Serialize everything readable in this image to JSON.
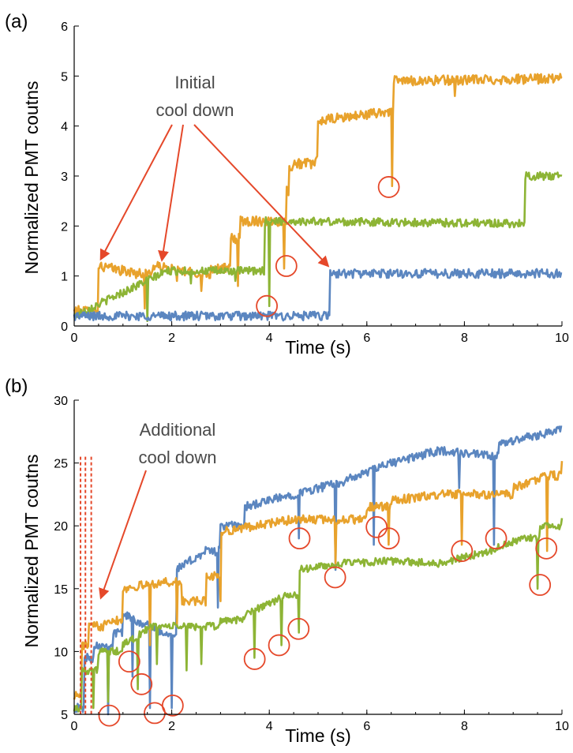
{
  "colors": {
    "orange": "#e8a22c",
    "green": "#8db435",
    "blue": "#5b86c0",
    "annotation": "#e5482a"
  },
  "chart_data": [
    {
      "type": "line",
      "panel_label": "(a)",
      "xlabel": "Time (s)",
      "ylabel": "Normalized PMT coutns",
      "xlim": [
        0,
        10
      ],
      "ylim": [
        0,
        6
      ],
      "xticks": [
        0,
        2,
        4,
        6,
        8,
        10
      ],
      "yticks": [
        0,
        1,
        2,
        3,
        4,
        5,
        6
      ],
      "grid": false,
      "series": [
        {
          "color_key": "orange",
          "steps": [
            [
              0,
              0.3
            ],
            [
              0.5,
              1.2
            ],
            [
              1.3,
              1.05
            ],
            [
              1.6,
              1.2
            ],
            [
              2.5,
              1.05
            ],
            [
              2.8,
              1.15
            ],
            [
              3.2,
              1.75
            ],
            [
              3.4,
              2.1
            ],
            [
              4.2,
              2.1
            ],
            [
              4.35,
              2.7
            ],
            [
              4.4,
              3.2
            ],
            [
              4.5,
              3.25
            ],
            [
              4.95,
              3.3
            ],
            [
              5.0,
              4.1
            ],
            [
              6.5,
              4.3
            ],
            [
              6.55,
              4.9
            ],
            [
              10,
              4.95
            ]
          ],
          "noise": 0.1,
          "dips": [
            [
              1.45,
              0.35
            ],
            [
              2.1,
              0.9
            ],
            [
              2.6,
              0.7
            ],
            [
              3.35,
              0.8
            ],
            [
              4.3,
              1.15
            ],
            [
              6.52,
              2.8
            ],
            [
              7.8,
              4.6
            ]
          ]
        },
        {
          "color_key": "green",
          "steps": [
            [
              0,
              0.2
            ],
            [
              1.9,
              1.1
            ],
            [
              3.85,
              1.1
            ],
            [
              3.9,
              2.1
            ],
            [
              9.2,
              2.05
            ],
            [
              9.25,
              3.0
            ],
            [
              10,
              3.0
            ]
          ],
          "noise": 0.08,
          "dips": [
            [
              1.5,
              0.1
            ],
            [
              2.4,
              0.85
            ],
            [
              3.3,
              0.9
            ],
            [
              4.0,
              0.4
            ]
          ]
        },
        {
          "color_key": "blue",
          "steps": [
            [
              0,
              0.2
            ],
            [
              5.2,
              0.2
            ],
            [
              5.25,
              1.05
            ],
            [
              10,
              1.05
            ]
          ],
          "noise": 0.09,
          "dips": []
        }
      ],
      "annotations": {
        "text_lines": [
          "Initial",
          "cool down"
        ],
        "circles": [
          [
            6.45,
            2.78
          ],
          [
            4.35,
            1.2
          ],
          [
            3.95,
            0.4
          ]
        ]
      }
    },
    {
      "type": "line",
      "panel_label": "(b)",
      "xlabel": "Time (s)",
      "ylabel": "Normalized PMT coutns",
      "xlim": [
        0,
        10
      ],
      "ylim": [
        5,
        30
      ],
      "xticks": [
        0,
        2,
        4,
        6,
        8,
        10
      ],
      "yticks": [
        5,
        10,
        15,
        20,
        25,
        30
      ],
      "grid": false,
      "series": [
        {
          "color_key": "blue",
          "steps": [
            [
              0,
              5.5
            ],
            [
              0.2,
              9.5
            ],
            [
              0.4,
              10.5
            ],
            [
              0.8,
              11.5
            ],
            [
              1.0,
              13.0
            ],
            [
              1.8,
              11.5
            ],
            [
              2.1,
              16.5
            ],
            [
              2.7,
              18.0
            ],
            [
              3.0,
              20.0
            ],
            [
              3.5,
              21.5
            ],
            [
              4.5,
              22.5
            ],
            [
              5.5,
              23.5
            ],
            [
              6.5,
              25.0
            ],
            [
              7.5,
              26.0
            ],
            [
              8.6,
              25.5
            ],
            [
              8.7,
              26.5
            ],
            [
              10,
              27.7
            ]
          ],
          "noise": 0.35,
          "dips": [
            [
              0.7,
              5.0
            ],
            [
              1.2,
              8.0
            ],
            [
              1.55,
              5.5
            ],
            [
              2.0,
              5.5
            ],
            [
              2.95,
              13.5
            ],
            [
              4.6,
              19.0
            ],
            [
              5.35,
              16.5
            ],
            [
              6.15,
              18.5
            ],
            [
              7.9,
              23.0
            ],
            [
              8.6,
              18.5
            ]
          ]
        },
        {
          "color_key": "orange",
          "steps": [
            [
              0,
              6.5
            ],
            [
              0.15,
              10.5
            ],
            [
              0.3,
              12.0
            ],
            [
              0.6,
              12.5
            ],
            [
              1.0,
              15.0
            ],
            [
              1.8,
              15.5
            ],
            [
              2.2,
              14.0
            ],
            [
              2.7,
              16.0
            ],
            [
              3.0,
              19.5
            ],
            [
              3.7,
              20.0
            ],
            [
              4.5,
              20.5
            ],
            [
              5.5,
              20.5
            ],
            [
              6.0,
              21.5
            ],
            [
              6.5,
              22.0
            ],
            [
              7.5,
              22.5
            ],
            [
              8.5,
              22.5
            ],
            [
              9.0,
              23.0
            ],
            [
              9.7,
              24.0
            ],
            [
              10,
              25.0
            ]
          ],
          "noise": 0.35,
          "dips": [
            [
              1.55,
              10.5
            ],
            [
              2.1,
              12.0
            ],
            [
              3.0,
              14.0
            ],
            [
              5.35,
              17.0
            ],
            [
              6.45,
              18.5
            ],
            [
              7.95,
              18.5
            ],
            [
              9.7,
              18.0
            ]
          ]
        },
        {
          "color_key": "green",
          "steps": [
            [
              0,
              5.5
            ],
            [
              0.15,
              8.5
            ],
            [
              0.5,
              10.0
            ],
            [
              1.0,
              10.5
            ],
            [
              1.6,
              12.0
            ],
            [
              2.5,
              12.0
            ],
            [
              3.0,
              12.5
            ],
            [
              3.5,
              13.0
            ],
            [
              4.4,
              14.5
            ],
            [
              4.6,
              16.5
            ],
            [
              5.5,
              17.0
            ],
            [
              6.5,
              17.2
            ],
            [
              7.5,
              17.0
            ],
            [
              8.5,
              18.0
            ],
            [
              9.2,
              19.0
            ],
            [
              9.55,
              20.0
            ],
            [
              10,
              20.5
            ]
          ],
          "noise": 0.3,
          "dips": [
            [
              0.4,
              5.5
            ],
            [
              0.7,
              6.0
            ],
            [
              1.3,
              7.0
            ],
            [
              1.7,
              9.0
            ],
            [
              2.3,
              8.5
            ],
            [
              2.6,
              9.0
            ],
            [
              3.7,
              9.5
            ],
            [
              4.25,
              10.5
            ],
            [
              4.6,
              11.5
            ],
            [
              9.5,
              15.0
            ]
          ]
        }
      ],
      "annotations": {
        "text_lines": [
          "Additional",
          "cool down"
        ],
        "dashed_x": [
          0.13,
          0.23,
          0.35
        ],
        "circles": [
          [
            0.72,
            4.9
          ],
          [
            1.13,
            9.2
          ],
          [
            1.38,
            7.4
          ],
          [
            1.65,
            5.1
          ],
          [
            2.02,
            5.7
          ],
          [
            3.7,
            9.4
          ],
          [
            4.2,
            10.5
          ],
          [
            4.6,
            11.8
          ],
          [
            4.62,
            19.0
          ],
          [
            5.35,
            15.9
          ],
          [
            6.2,
            19.9
          ],
          [
            6.45,
            19.0
          ],
          [
            7.95,
            18.0
          ],
          [
            8.65,
            19.0
          ],
          [
            9.55,
            15.3
          ],
          [
            9.68,
            18.2
          ]
        ]
      }
    }
  ]
}
